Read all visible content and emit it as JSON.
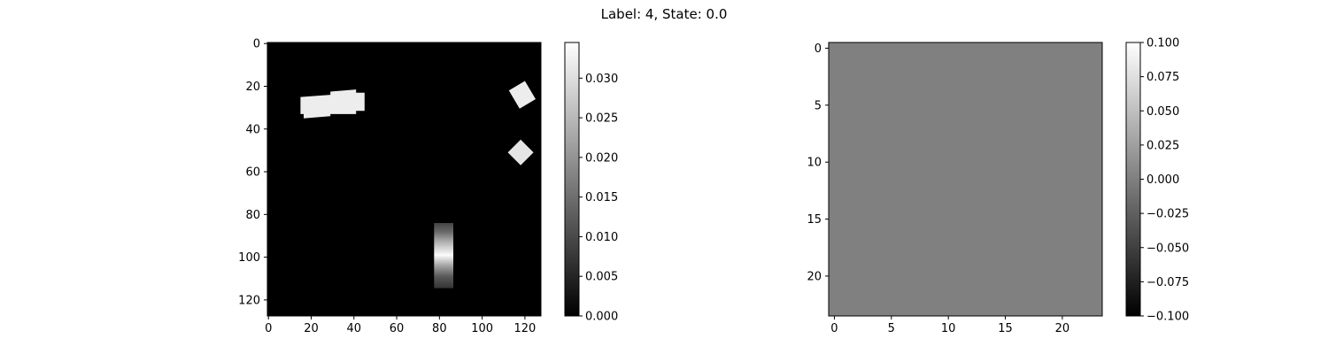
{
  "figure": {
    "suptitle": "Label: 4, State: 0.0"
  },
  "chart_data": [
    {
      "type": "heatmap",
      "name": "image-panel",
      "colormap": "gray",
      "image_size": [
        128,
        128
      ],
      "xlim": [
        -0.5,
        127.5
      ],
      "ylim": [
        127.5,
        -0.5
      ],
      "x_ticks": [
        0,
        20,
        40,
        60,
        80,
        100,
        120
      ],
      "y_ticks": [
        0,
        20,
        40,
        60,
        80,
        100,
        120
      ],
      "x_tick_labels": [
        "0",
        "20",
        "40",
        "60",
        "80",
        "100",
        "120"
      ],
      "y_tick_labels": [
        "0",
        "20",
        "40",
        "60",
        "80",
        "100",
        "120"
      ],
      "background_value": 0.0,
      "objects": [
        {
          "shape": "polygon",
          "value": 0.032,
          "points": [
            [
              15,
              25
            ],
            [
              29,
              24
            ],
            [
              29,
              22.5
            ],
            [
              41,
              21.5
            ],
            [
              41,
              23
            ],
            [
              45,
              23
            ],
            [
              45,
              31.5
            ],
            [
              41,
              31.5
            ],
            [
              41,
              33
            ],
            [
              29,
              33
            ],
            [
              29,
              34
            ],
            [
              16.5,
              35
            ],
            [
              16.5,
              33
            ],
            [
              15,
              33
            ]
          ]
        },
        {
          "shape": "polygon",
          "value": 0.032,
          "points": [
            [
              112.5,
              22
            ],
            [
              120,
              17.5
            ],
            [
              125,
              26
            ],
            [
              117.5,
              30.5
            ]
          ]
        },
        {
          "shape": "polygon",
          "value": 0.031,
          "points": [
            [
              118,
              45
            ],
            [
              124,
              51
            ],
            [
              118,
              57
            ],
            [
              112,
              51
            ]
          ]
        },
        {
          "shape": "vgradient-bar",
          "x": [
            77.5,
            86.5
          ],
          "y": [
            84,
            114.5
          ],
          "peak_y": 99,
          "stops": [
            [
              84,
              0.009
            ],
            [
              88,
              0.014
            ],
            [
              93,
              0.024
            ],
            [
              99,
              0.034
            ],
            [
              104,
              0.022
            ],
            [
              109,
              0.012
            ],
            [
              114.5,
              0.007
            ]
          ]
        }
      ],
      "colorbar": {
        "min": 0.0,
        "max": 0.0345,
        "ticks": [
          0.0,
          0.005,
          0.01,
          0.015,
          0.02,
          0.025,
          0.03
        ],
        "tick_labels": [
          "0.000",
          "0.005",
          "0.010",
          "0.015",
          "0.020",
          "0.025",
          "0.030"
        ]
      }
    },
    {
      "type": "heatmap",
      "name": "state-panel",
      "colormap": "gray",
      "image_size": [
        24,
        24
      ],
      "xlim": [
        -0.5,
        23.5
      ],
      "ylim": [
        23.5,
        -0.5
      ],
      "x_ticks": [
        0,
        5,
        10,
        15,
        20
      ],
      "y_ticks": [
        0,
        5,
        10,
        15,
        20
      ],
      "x_tick_labels": [
        "0",
        "5",
        "10",
        "15",
        "20"
      ],
      "y_tick_labels": [
        "0",
        "5",
        "10",
        "15",
        "20"
      ],
      "uniform_value": 0.0,
      "colorbar": {
        "min": -0.1,
        "max": 0.1,
        "ticks": [
          -0.1,
          -0.075,
          -0.05,
          -0.025,
          0.0,
          0.025,
          0.05,
          0.075,
          0.1
        ],
        "tick_labels": [
          "−0.100",
          "−0.075",
          "−0.050",
          "−0.025",
          "0.000",
          "0.025",
          "0.050",
          "0.075",
          "0.100"
        ]
      }
    }
  ]
}
